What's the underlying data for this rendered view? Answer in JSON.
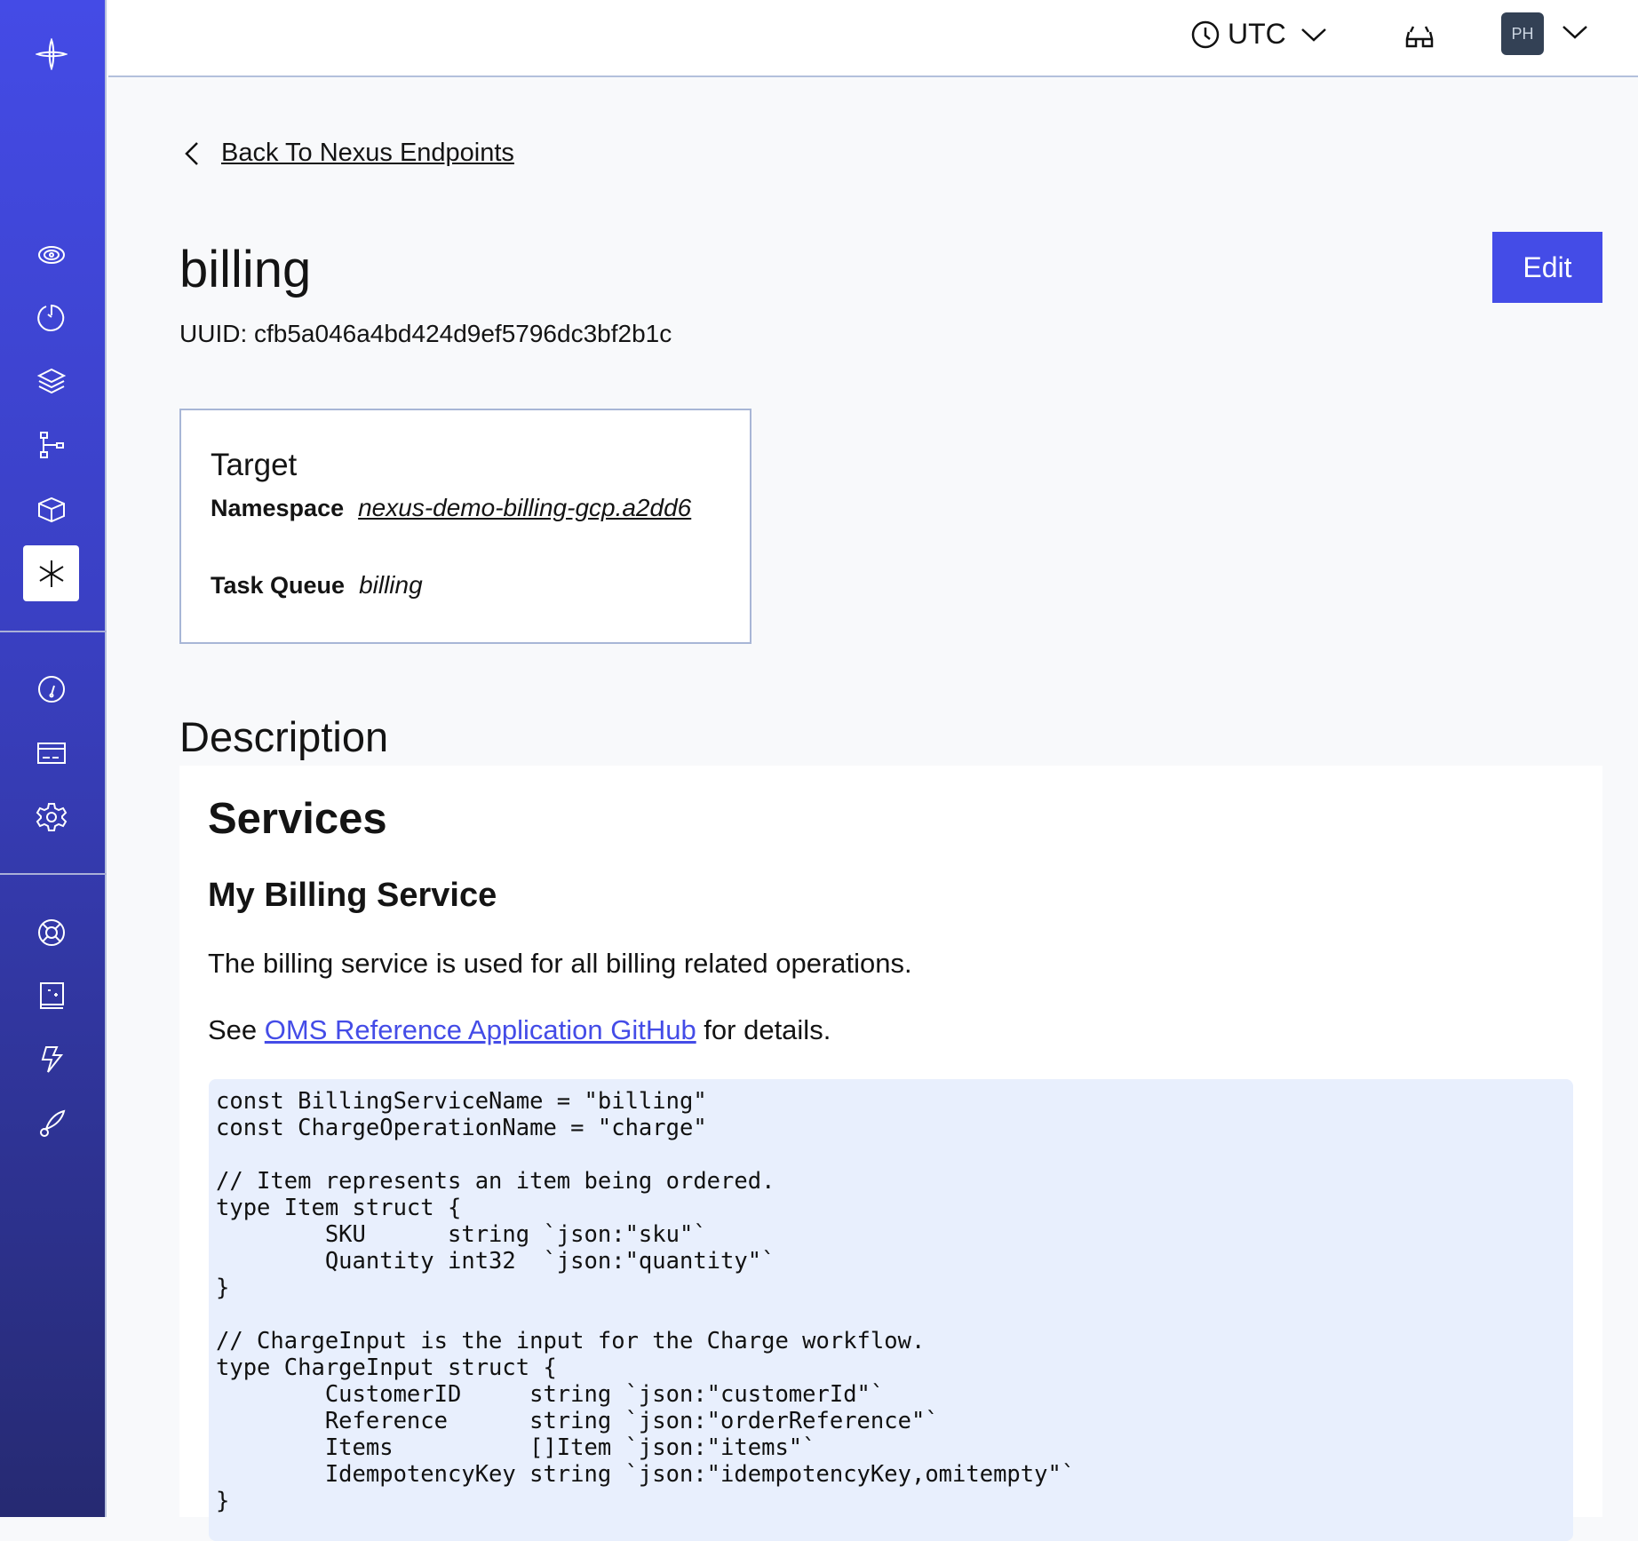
{
  "sidebar": {
    "items": [
      {
        "icon": "radar-icon"
      },
      {
        "icon": "history-icon"
      },
      {
        "icon": "layers-icon"
      },
      {
        "icon": "workflow-tree-icon"
      },
      {
        "icon": "box-icon"
      },
      {
        "icon": "nexus-asterisk-icon",
        "selected": true
      },
      {
        "icon": "gauge-icon"
      },
      {
        "icon": "credit-card-icon"
      },
      {
        "icon": "gear-icon"
      },
      {
        "icon": "lifebuoy-icon"
      },
      {
        "icon": "book-sparkle-icon"
      },
      {
        "icon": "lightning-icon"
      },
      {
        "icon": "rocket-icon"
      }
    ]
  },
  "topbar": {
    "timezone": "UTC",
    "avatar_initials": "PH"
  },
  "back_link": "Back To Nexus Endpoints",
  "endpoint": {
    "name": "billing",
    "uuid": "UUID: cfb5a046a4bd424d9ef5796dc3bf2b1c",
    "edit_label": "Edit"
  },
  "target": {
    "heading": "Target",
    "namespace_label": "Namespace",
    "namespace": "nexus-demo-billing-gcp.a2dd6",
    "task_queue_label": "Task Queue",
    "task_queue": "billing"
  },
  "description": {
    "heading": "Description",
    "h1": "Services",
    "h2": "My Billing Service",
    "paragraph": "The billing service is used for all billing related operations.",
    "see_prefix": "See ",
    "link": "OMS Reference Application GitHub",
    "see_suffix": " for details.",
    "code": "const BillingServiceName = \"billing\"\nconst ChargeOperationName = \"charge\"\n\n// Item represents an item being ordered.\ntype Item struct {\n        SKU      string `json:\"sku\"`\n        Quantity int32  `json:\"quantity\"`\n}\n\n// ChargeInput is the input for the Charge workflow.\ntype ChargeInput struct {\n        CustomerID     string `json:\"customerId\"`\n        Reference      string `json:\"orderReference\"`\n        Items          []Item `json:\"items\"`\n        IdempotencyKey string `json:\"idempotencyKey,omitempty\"`\n}"
  },
  "colors": {
    "accent": "#444ce7",
    "sidebar_top": "#444be6",
    "sidebar_bottom": "#262a72",
    "code_bg": "#e8effd"
  }
}
